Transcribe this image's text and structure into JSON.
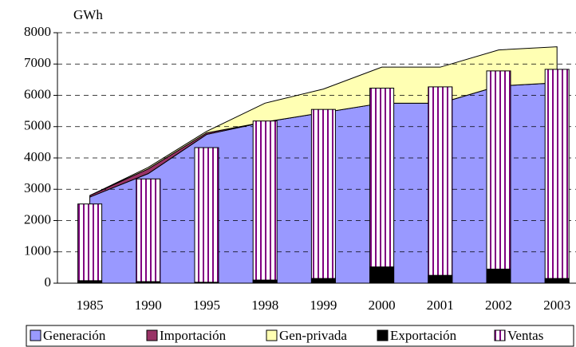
{
  "chart_data": {
    "type": "combo",
    "y_label": "GWh",
    "categories": [
      "1985",
      "1990",
      "1995",
      "1998",
      "1999",
      "2000",
      "2001",
      "2002",
      "2003"
    ],
    "series": [
      {
        "name": "Generación",
        "type": "area",
        "color": "#9999ff",
        "values": [
          2750,
          3500,
          4750,
          5150,
          5450,
          5750,
          5750,
          6300,
          6400
        ]
      },
      {
        "name": "Importación",
        "type": "area",
        "color": "#993366",
        "values": [
          50,
          150,
          50,
          0,
          0,
          0,
          0,
          0,
          0
        ]
      },
      {
        "name": "Gen-privada",
        "type": "area",
        "color": "#ffffb3",
        "values": [
          0,
          50,
          50,
          600,
          750,
          1150,
          1150,
          1150,
          1150
        ]
      },
      {
        "name": "Exportación",
        "type": "bar",
        "color": "#000000",
        "values": [
          80,
          50,
          30,
          100,
          150,
          520,
          250,
          450,
          150
        ]
      },
      {
        "name": "Ventas",
        "type": "bar",
        "color": "#800080",
        "pattern": "stripes",
        "values": [
          2530,
          3330,
          4330,
          5180,
          5550,
          6230,
          6270,
          6780,
          6830
        ]
      }
    ],
    "ylim": [
      0,
      8000
    ],
    "yticks": [
      0,
      1000,
      2000,
      3000,
      4000,
      5000,
      6000,
      7000,
      8000
    ],
    "grid": true,
    "legend": "bottom"
  }
}
